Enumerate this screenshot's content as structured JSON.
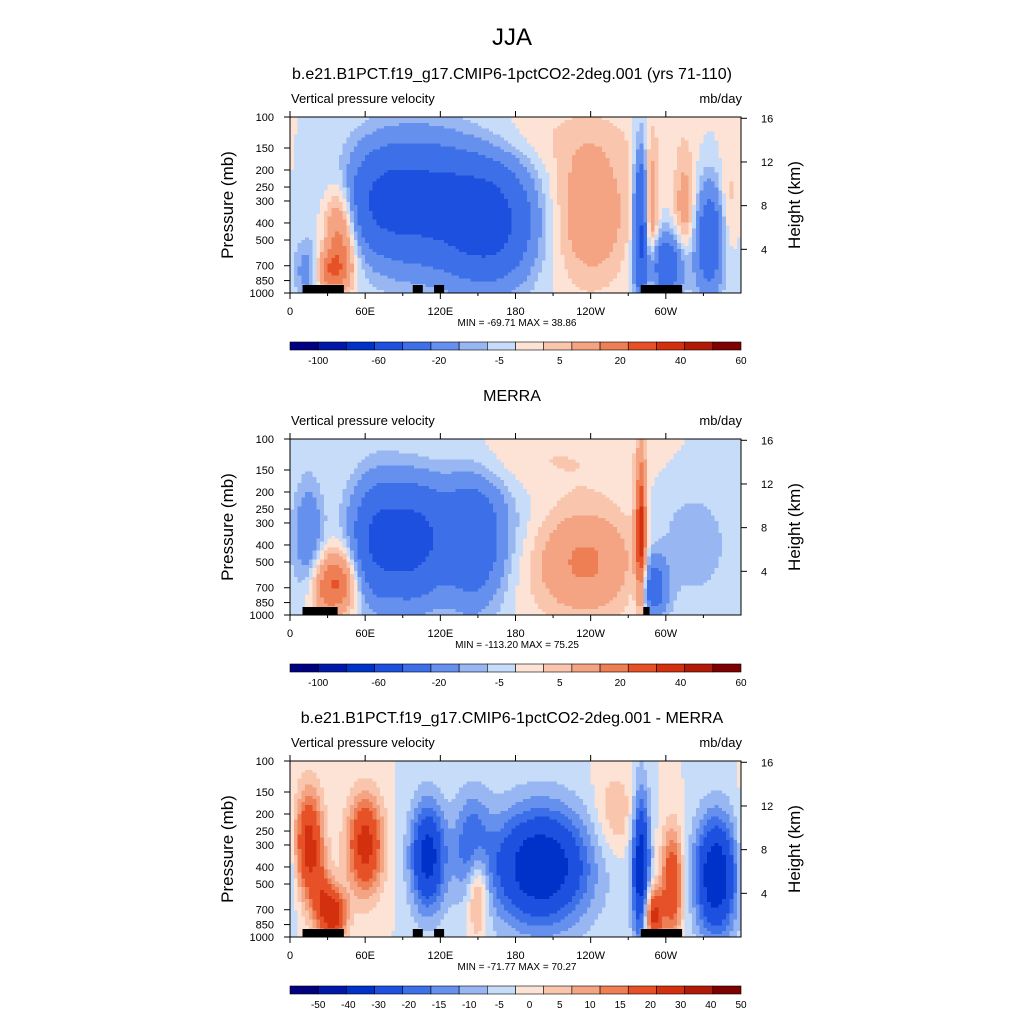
{
  "page_title": "JJA",
  "chart_data": [
    {
      "type": "heatmap",
      "title": "b.e21.B1PCT.f19_g17.CMIP6-1pctCO2-2deg.001 (yrs 71-110)",
      "left_label": "Vertical pressure velocity",
      "right_label": "mb/day",
      "ylabel": "Pressure (mb)",
      "y2label": "Height (km)",
      "x_ticks": [
        "0",
        "60E",
        "120E",
        "180",
        "120W",
        "60W"
      ],
      "x_tick_lon": [
        0,
        60,
        120,
        180,
        240,
        300
      ],
      "xlim": [
        0,
        360
      ],
      "y_ticks": [
        "100",
        "150",
        "200",
        "250",
        "300",
        "400",
        "500",
        "700",
        "850",
        "1000"
      ],
      "y_tick_p": [
        100,
        150,
        200,
        250,
        300,
        400,
        500,
        700,
        850,
        1000
      ],
      "ylim": [
        1000,
        100
      ],
      "height_ticks": [
        "4",
        "8",
        "12",
        "16"
      ],
      "height_tick_km": [
        4,
        8,
        12,
        16
      ],
      "stats": "MIN = -69.71  MAX =  38.86",
      "colorbar_labels": [
        "-100",
        "-60",
        "-20",
        "-5",
        "5",
        "20",
        "40",
        "60"
      ],
      "colorbar_levels": [
        -120,
        -100,
        -80,
        -60,
        -40,
        -20,
        -10,
        -5,
        0,
        5,
        10,
        20,
        30,
        40,
        50,
        60,
        80
      ],
      "terrain_lon": [
        [
          10,
          43
        ],
        [
          98,
          106
        ],
        [
          115,
          123
        ],
        [
          280,
          313
        ]
      ],
      "blobs": [
        {
          "lon": 105,
          "p": 300,
          "wl": 35,
          "wp": 0.6,
          "a": -45
        },
        {
          "lon": 160,
          "p": 400,
          "wl": 25,
          "wp": 0.55,
          "a": -45
        },
        {
          "lon": 70,
          "p": 300,
          "wl": 20,
          "wp": 0.45,
          "a": -20
        },
        {
          "lon": 40,
          "p": 450,
          "wl": 9,
          "wp": 0.45,
          "a": 30
        },
        {
          "lon": 30,
          "p": 750,
          "wl": 12,
          "wp": 0.2,
          "a": 25
        },
        {
          "lon": 15,
          "p": 750,
          "wl": 8,
          "wp": 0.25,
          "a": -22
        },
        {
          "lon": 240,
          "p": 350,
          "wl": 22,
          "wp": 0.65,
          "a": 18
        },
        {
          "lon": 280,
          "p": 400,
          "wl": 4,
          "wp": 0.7,
          "a": -45
        },
        {
          "lon": 288,
          "p": 400,
          "wl": 4,
          "wp": 0.7,
          "a": 20
        },
        {
          "lon": 300,
          "p": 700,
          "wl": 12,
          "wp": 0.3,
          "a": -35
        },
        {
          "lon": 315,
          "p": 350,
          "wl": 6,
          "wp": 0.6,
          "a": 15
        },
        {
          "lon": 335,
          "p": 500,
          "wl": 8,
          "wp": 0.5,
          "a": -35
        },
        {
          "lon": 350,
          "p": 300,
          "wl": 5,
          "wp": 0.5,
          "a": 8
        },
        {
          "lon": 200,
          "p": 130,
          "wl": 70,
          "wp": 0.3,
          "a": 4
        }
      ]
    },
    {
      "type": "heatmap",
      "title": "MERRA",
      "left_label": "Vertical pressure velocity",
      "right_label": "mb/day",
      "ylabel": "Pressure (mb)",
      "y2label": "Height (km)",
      "x_ticks": [
        "0",
        "60E",
        "120E",
        "180",
        "120W",
        "60W"
      ],
      "x_tick_lon": [
        0,
        60,
        120,
        180,
        240,
        300
      ],
      "xlim": [
        0,
        360
      ],
      "y_ticks": [
        "100",
        "150",
        "200",
        "250",
        "300",
        "400",
        "500",
        "700",
        "850",
        "1000"
      ],
      "y_tick_p": [
        100,
        150,
        200,
        250,
        300,
        400,
        500,
        700,
        850,
        1000
      ],
      "ylim": [
        1000,
        100
      ],
      "height_ticks": [
        "4",
        "8",
        "12",
        "16"
      ],
      "height_tick_km": [
        4,
        8,
        12,
        16
      ],
      "stats": "MIN = -113.20  MAX =  75.25",
      "colorbar_labels": [
        "-100",
        "-60",
        "-20",
        "-5",
        "5",
        "20",
        "40",
        "60"
      ],
      "colorbar_levels": [
        -120,
        -100,
        -80,
        -60,
        -40,
        -20,
        -10,
        -5,
        0,
        5,
        10,
        20,
        30,
        40,
        50,
        60,
        80
      ],
      "terrain_lon": [
        [
          10,
          38
        ],
        [
          282,
          287
        ]
      ],
      "blobs": [
        {
          "lon": 70,
          "p": 380,
          "wl": 15,
          "wp": 0.55,
          "a": -40
        },
        {
          "lon": 100,
          "p": 400,
          "wl": 15,
          "wp": 0.55,
          "a": -35
        },
        {
          "lon": 145,
          "p": 400,
          "wl": 18,
          "wp": 0.6,
          "a": -30
        },
        {
          "lon": 125,
          "p": 300,
          "wl": 40,
          "wp": 0.5,
          "a": -12
        },
        {
          "lon": 15,
          "p": 350,
          "wl": 8,
          "wp": 0.5,
          "a": -18
        },
        {
          "lon": 40,
          "p": 650,
          "wl": 10,
          "wp": 0.3,
          "a": 30
        },
        {
          "lon": 25,
          "p": 700,
          "wl": 8,
          "wp": 0.3,
          "a": 15
        },
        {
          "lon": 235,
          "p": 500,
          "wl": 30,
          "wp": 0.5,
          "a": 22
        },
        {
          "lon": 280,
          "p": 350,
          "wl": 3,
          "wp": 0.7,
          "a": 45
        },
        {
          "lon": 290,
          "p": 700,
          "wl": 8,
          "wp": 0.3,
          "a": -30
        },
        {
          "lon": 320,
          "p": 400,
          "wl": 25,
          "wp": 0.6,
          "a": -8
        },
        {
          "lon": 200,
          "p": 130,
          "wl": 60,
          "wp": 0.3,
          "a": 5
        }
      ]
    },
    {
      "type": "heatmap",
      "title": "b.e21.B1PCT.f19_g17.CMIP6-1pctCO2-2deg.001 - MERRA",
      "left_label": "Vertical pressure velocity",
      "right_label": "mb/day",
      "ylabel": "Pressure (mb)",
      "y2label": "Height (km)",
      "x_ticks": [
        "0",
        "60E",
        "120E",
        "180",
        "120W",
        "60W"
      ],
      "x_tick_lon": [
        0,
        60,
        120,
        180,
        240,
        300
      ],
      "xlim": [
        0,
        360
      ],
      "y_ticks": [
        "100",
        "150",
        "200",
        "250",
        "300",
        "400",
        "500",
        "700",
        "850",
        "1000"
      ],
      "y_tick_p": [
        100,
        150,
        200,
        250,
        300,
        400,
        500,
        700,
        850,
        1000
      ],
      "ylim": [
        1000,
        100
      ],
      "height_ticks": [
        "4",
        "8",
        "12",
        "16"
      ],
      "height_tick_km": [
        4,
        8,
        12,
        16
      ],
      "stats": "MIN = -71.77  MAX =  70.27",
      "colorbar_labels": [
        "-50",
        "-40",
        "-30",
        "-20",
        "-15",
        "-10",
        "-5",
        "0",
        "5",
        "10",
        "15",
        "20",
        "30",
        "40",
        "50"
      ],
      "colorbar_levels": [
        -60,
        -50,
        -40,
        -30,
        -20,
        -15,
        -10,
        -5,
        0,
        5,
        10,
        15,
        20,
        30,
        40,
        50,
        60
      ],
      "terrain_lon": [
        [
          10,
          43
        ],
        [
          98,
          106
        ],
        [
          115,
          123
        ],
        [
          280,
          313
        ]
      ],
      "blobs": [
        {
          "lon": 15,
          "p": 300,
          "wl": 8,
          "wp": 0.5,
          "a": 35
        },
        {
          "lon": 60,
          "p": 300,
          "wl": 10,
          "wp": 0.45,
          "a": 35
        },
        {
          "lon": 35,
          "p": 750,
          "wl": 7,
          "wp": 0.25,
          "a": 35
        },
        {
          "lon": 25,
          "p": 600,
          "wl": 6,
          "wp": 0.3,
          "a": 18
        },
        {
          "lon": 110,
          "p": 350,
          "wl": 10,
          "wp": 0.5,
          "a": -35
        },
        {
          "lon": 150,
          "p": 550,
          "wl": 6,
          "wp": 0.4,
          "a": 22
        },
        {
          "lon": 200,
          "p": 400,
          "wl": 28,
          "wp": 0.55,
          "a": -40
        },
        {
          "lon": 145,
          "p": 300,
          "wl": 10,
          "wp": 0.5,
          "a": -18
        },
        {
          "lon": 280,
          "p": 400,
          "wl": 5,
          "wp": 0.7,
          "a": -38
        },
        {
          "lon": 290,
          "p": 750,
          "wl": 5,
          "wp": 0.25,
          "a": 35
        },
        {
          "lon": 305,
          "p": 500,
          "wl": 6,
          "wp": 0.5,
          "a": 30
        },
        {
          "lon": 340,
          "p": 450,
          "wl": 12,
          "wp": 0.55,
          "a": -40
        },
        {
          "lon": 260,
          "p": 200,
          "wl": 12,
          "wp": 0.4,
          "a": 10
        }
      ]
    }
  ],
  "colors": {
    "palette": [
      "#000080",
      "#0018a8",
      "#0031c8",
      "#1e50e0",
      "#3d6fe8",
      "#6590ee",
      "#97b6f2",
      "#c6dcf8",
      "#fde3d5",
      "#f9c6ad",
      "#f4a482",
      "#ee7e54",
      "#e65128",
      "#d3300f",
      "#b11a06",
      "#7f0000"
    ]
  }
}
